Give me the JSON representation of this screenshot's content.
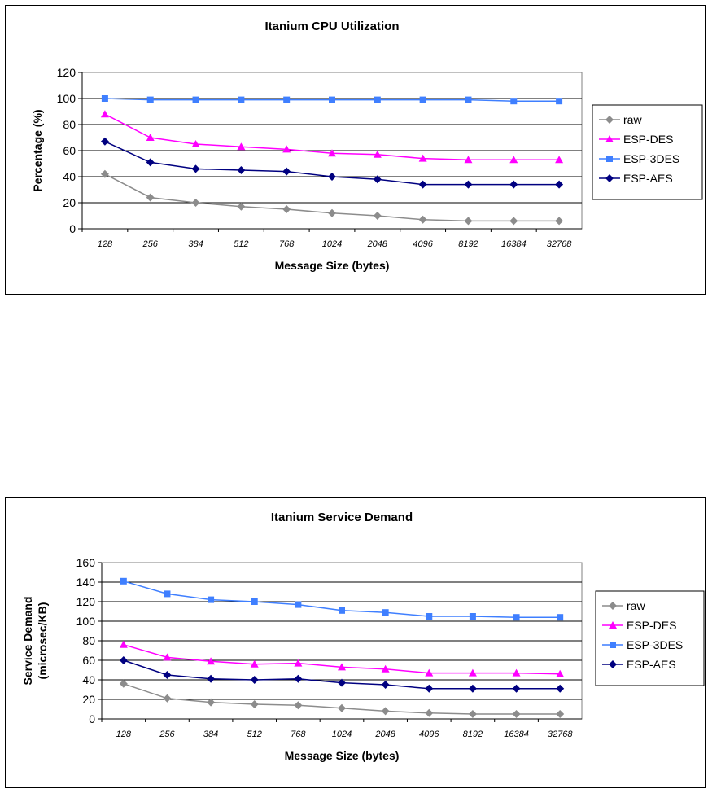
{
  "chart_data": [
    {
      "type": "line",
      "title": "Itanium CPU Utilization",
      "xlabel": "Message Size (bytes)",
      "ylabel": [
        "Percentage (%)"
      ],
      "ylim": [
        0,
        120
      ],
      "yticks": [
        0,
        20,
        40,
        60,
        80,
        100,
        120
      ],
      "grid": true,
      "legend": "right",
      "categories": [
        "128",
        "256",
        "384",
        "512",
        "768",
        "1024",
        "2048",
        "4096",
        "8192",
        "16384",
        "32768"
      ],
      "series": [
        {
          "name": "raw",
          "marker": "diamond",
          "color": "#8c8c8c",
          "values": [
            42,
            24,
            20,
            17,
            15,
            12,
            10,
            7,
            6,
            6,
            6
          ]
        },
        {
          "name": "ESP-DES",
          "marker": "triangle",
          "color": "#ff00ff",
          "values": [
            88,
            70,
            65,
            63,
            61,
            58,
            57,
            54,
            53,
            53,
            53
          ]
        },
        {
          "name": "ESP-3DES",
          "marker": "square",
          "color": "#3f7fff",
          "values": [
            100,
            99,
            99,
            99,
            99,
            99,
            99,
            99,
            99,
            98,
            98
          ]
        },
        {
          "name": "ESP-AES",
          "marker": "diamond",
          "color": "#000080",
          "values": [
            67,
            51,
            46,
            45,
            44,
            40,
            38,
            34,
            34,
            34,
            34
          ]
        }
      ]
    },
    {
      "type": "line",
      "title": "Itanium Service Demand",
      "xlabel": "Message Size (bytes)",
      "ylabel": [
        "Service Demand",
        "(microsec/KB)"
      ],
      "ylim": [
        0,
        160
      ],
      "yticks": [
        0,
        20,
        40,
        60,
        80,
        100,
        120,
        140,
        160
      ],
      "grid": true,
      "legend": "right",
      "categories": [
        "128",
        "256",
        "384",
        "512",
        "768",
        "1024",
        "2048",
        "4096",
        "8192",
        "16384",
        "32768"
      ],
      "series": [
        {
          "name": "raw",
          "marker": "diamond",
          "color": "#8c8c8c",
          "values": [
            36,
            21,
            17,
            15,
            14,
            11,
            8,
            6,
            5,
            5,
            5
          ]
        },
        {
          "name": "ESP-DES",
          "marker": "triangle",
          "color": "#ff00ff",
          "values": [
            76,
            63,
            59,
            56,
            57,
            53,
            51,
            47,
            47,
            47,
            46
          ]
        },
        {
          "name": "ESP-3DES",
          "marker": "square",
          "color": "#3f7fff",
          "values": [
            141,
            128,
            122,
            120,
            117,
            111,
            109,
            105,
            105,
            104,
            104
          ]
        },
        {
          "name": "ESP-AES",
          "marker": "diamond",
          "color": "#000080",
          "values": [
            60,
            45,
            41,
            40,
            41,
            37,
            35,
            31,
            31,
            31,
            31
          ]
        }
      ]
    }
  ]
}
